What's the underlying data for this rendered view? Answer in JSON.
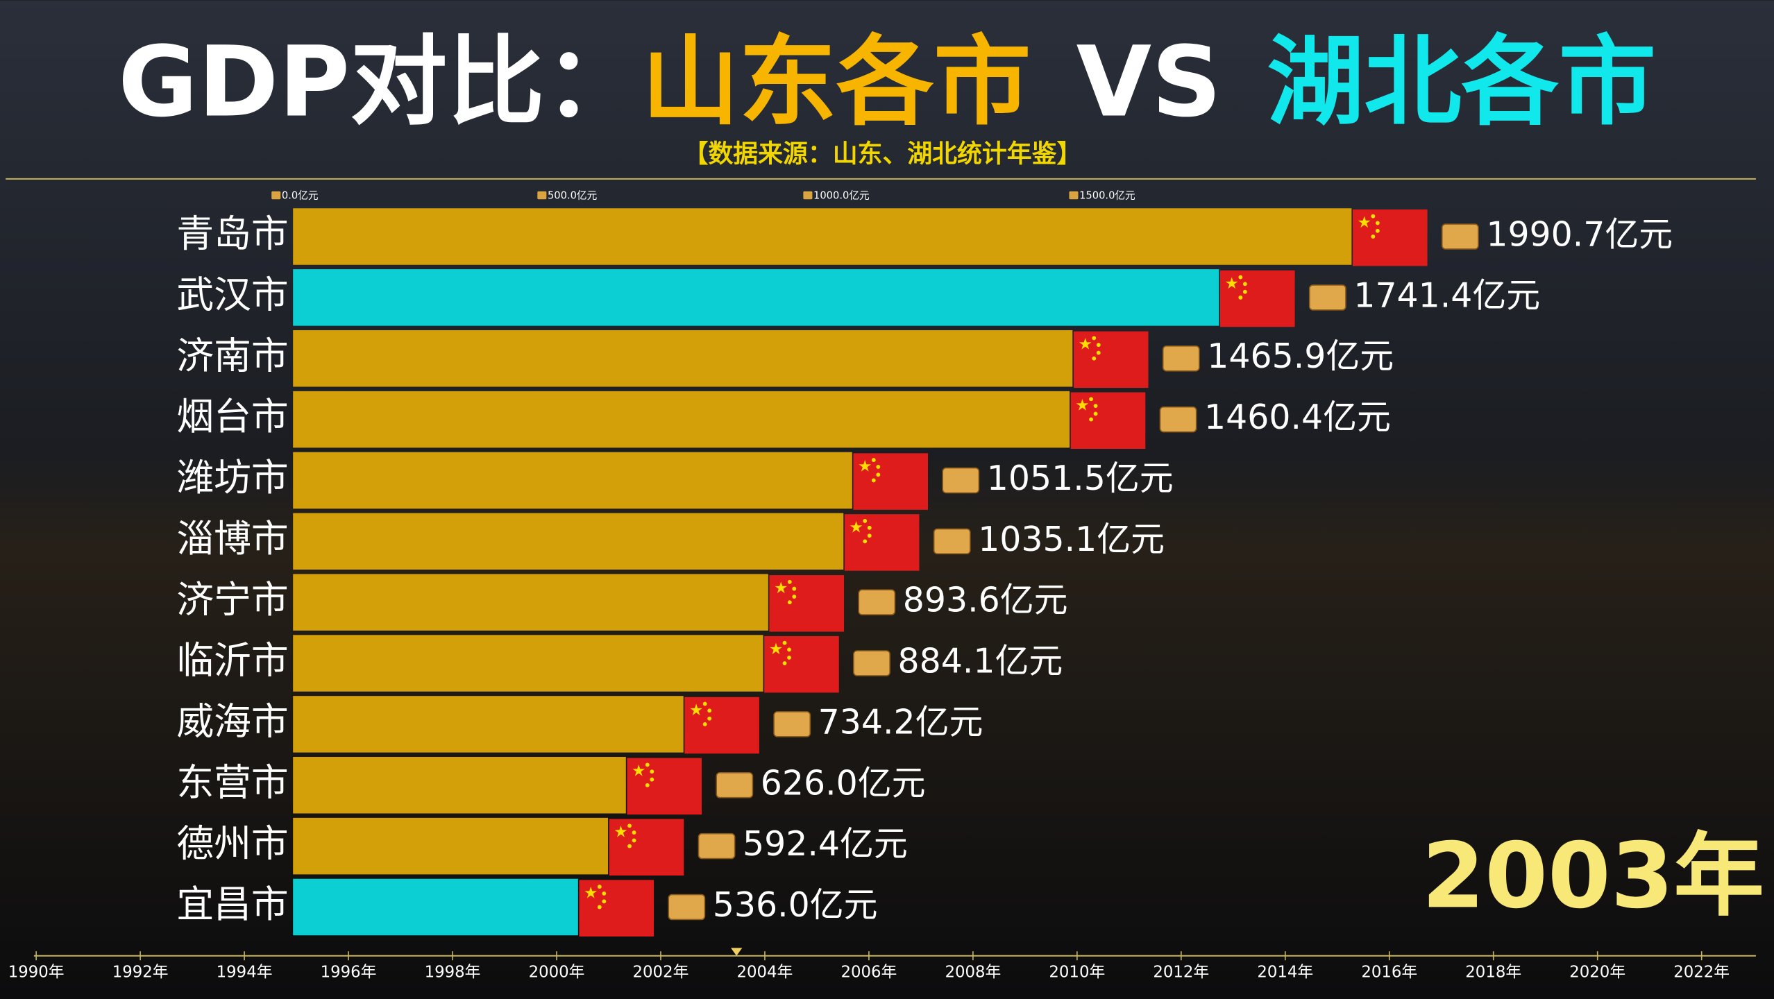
{
  "chart_data": {
    "type": "bar",
    "title_parts": [
      "GDP对比：",
      "山东各市",
      "VS",
      "湖北各市"
    ],
    "title_colors": [
      "#ffffff",
      "#f7b500",
      "#ffffff",
      "#10e8ec"
    ],
    "subtitle": "【数据来源：山东、湖北统计年鉴】",
    "categories": [
      "青岛市",
      "武汉市",
      "济南市",
      "烟台市",
      "潍坊市",
      "淄博市",
      "济宁市",
      "临沂市",
      "威海市",
      "东营市",
      "德州市",
      "宜昌市"
    ],
    "values": [
      1990.7,
      1741.4,
      1465.9,
      1460.4,
      1051.5,
      1035.1,
      893.6,
      884.1,
      734.2,
      626.0,
      592.4,
      536.0
    ],
    "value_labels": [
      "1990.7亿元",
      "1741.4亿元",
      "1465.9亿元",
      "1460.4亿元",
      "1051.5亿元",
      "1035.1亿元",
      "893.6亿元",
      "884.1亿元",
      "734.2亿元",
      "626.0亿元",
      "592.4亿元",
      "536.0亿元"
    ],
    "colors": [
      "#d4a00a",
      "#0ccfd4",
      "#d4a00a",
      "#d4a00a",
      "#d4a00a",
      "#d4a00a",
      "#d4a00a",
      "#d4a00a",
      "#d4a00a",
      "#d4a00a",
      "#d4a00a",
      "#0ccfd4"
    ],
    "xlim": [
      0,
      2750
    ],
    "xticks": [
      {
        "value": 0,
        "label": "0.0亿元"
      },
      {
        "value": 500,
        "label": "500.0亿元"
      },
      {
        "value": 1000,
        "label": "1000.0亿元"
      },
      {
        "value": 1500,
        "label": "1500.0亿元"
      }
    ],
    "timeline_labels": [
      "1990年",
      "1992年",
      "1994年",
      "1996年",
      "1998年",
      "2000年",
      "2002年",
      "2004年",
      "2006年",
      "2008年",
      "2010年",
      "2012年",
      "2014年",
      "2016年",
      "2018年",
      "2020年",
      "2022年"
    ],
    "current_label": "2003年"
  }
}
